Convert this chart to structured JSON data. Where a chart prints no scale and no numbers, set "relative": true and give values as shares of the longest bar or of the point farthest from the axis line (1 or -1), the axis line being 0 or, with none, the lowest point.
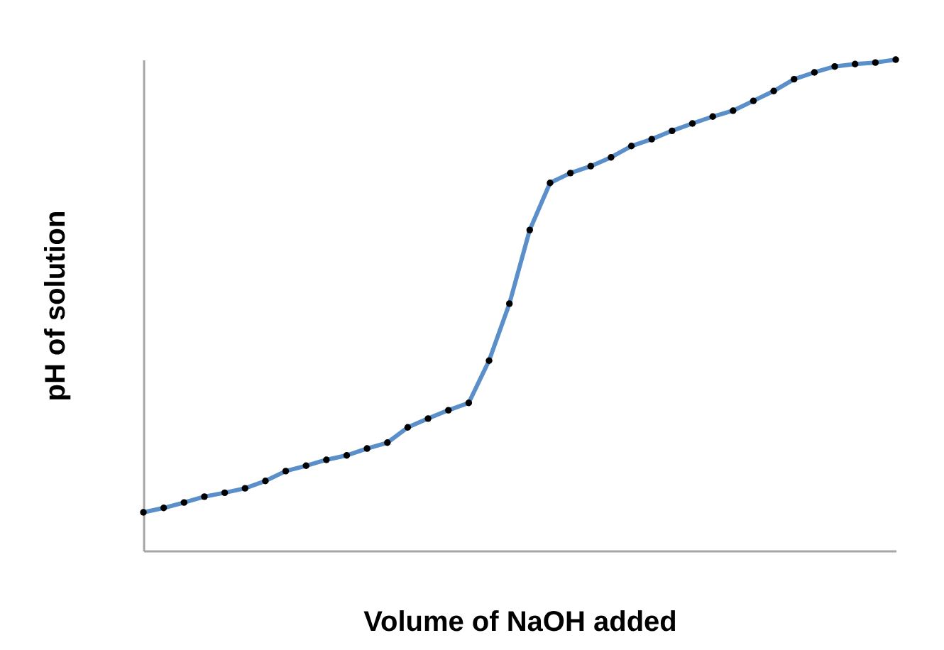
{
  "chart_data": {
    "type": "line",
    "xlabel": "Volume of NaOH added",
    "ylabel": "pH of solution",
    "relative": true,
    "marker": "circle",
    "line_style": "solid",
    "categories": [
      null,
      null,
      null,
      null,
      null,
      null,
      null,
      null,
      null,
      null,
      null,
      null,
      null,
      null,
      null,
      null,
      null,
      null,
      null,
      null,
      null,
      null,
      null,
      null,
      null,
      null,
      null,
      null,
      null,
      null,
      null,
      null,
      null,
      null,
      null,
      null,
      null,
      null
    ],
    "series": [
      {
        "color": "#5b8fc9",
        "values": [
          0.078,
          0.087,
          0.098,
          0.11,
          0.118,
          0.127,
          0.142,
          0.162,
          0.173,
          0.185,
          0.194,
          0.208,
          0.22,
          0.251,
          0.269,
          0.286,
          0.301,
          0.387,
          0.503,
          0.653,
          0.749,
          0.769,
          0.783,
          0.801,
          0.824,
          0.838,
          0.855,
          0.87,
          0.884,
          0.896,
          0.916,
          0.936,
          0.96,
          0.974,
          0.986,
          0.991,
          0.994,
          1.0
        ]
      }
    ]
  }
}
